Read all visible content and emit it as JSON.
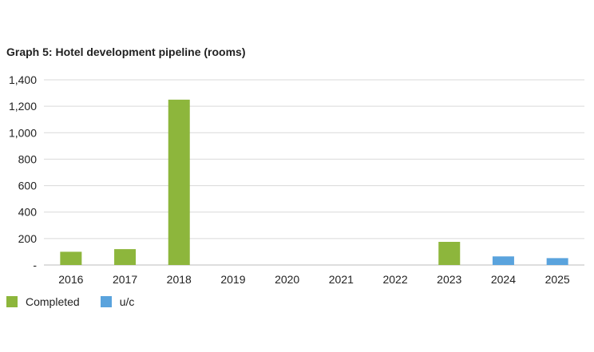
{
  "chart_data": {
    "type": "bar",
    "title": "Graph 5: Hotel development pipeline (rooms)",
    "categories": [
      "2016",
      "2017",
      "2018",
      "2019",
      "2020",
      "2021",
      "2022",
      "2023",
      "2024",
      "2025"
    ],
    "series": [
      {
        "name": "Completed",
        "color": "#8db63c",
        "values": [
          100,
          120,
          1250,
          0,
          0,
          0,
          0,
          175,
          0,
          0
        ]
      },
      {
        "name": "u/c",
        "color": "#5aa3dd",
        "values": [
          0,
          0,
          0,
          0,
          0,
          0,
          0,
          0,
          65,
          52
        ]
      }
    ],
    "ylim": [
      0,
      1400
    ],
    "yticks": [
      0,
      200,
      400,
      600,
      800,
      1000,
      1200,
      1400
    ],
    "ytick_labels": [
      "-",
      "200",
      "400",
      "600",
      "800",
      "1,000",
      "1,200",
      "1,400"
    ],
    "xlabel": "",
    "ylabel": "",
    "grid": true,
    "legend_position": "bottom-left"
  }
}
